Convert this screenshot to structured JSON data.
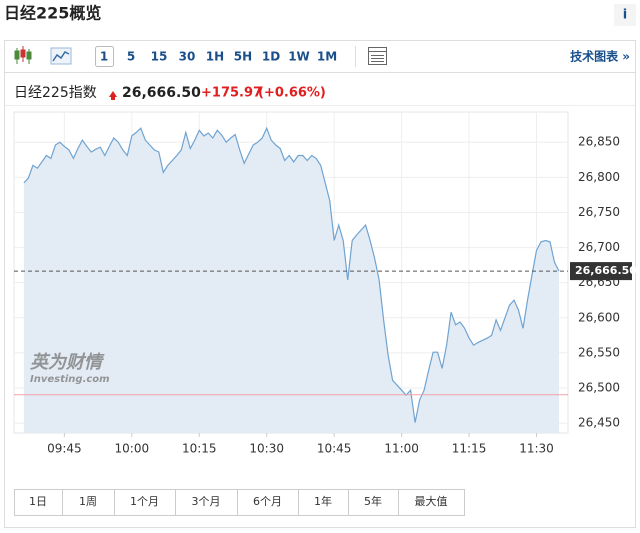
{
  "header": {
    "title": "日经225概览",
    "info": "i"
  },
  "toolbar": {
    "intervals": [
      "1",
      "5",
      "15",
      "30",
      "1H",
      "5H",
      "1D",
      "1W",
      "1M"
    ],
    "tech_chart": "技术图表 »"
  },
  "quote": {
    "name": "日经225指数",
    "price": "26,666.50",
    "change": "+175.97",
    "change_pct": "(+0.66%)"
  },
  "watermark": {
    "brand": "英为财情",
    "site": "Investing.com"
  },
  "ranges": [
    "1日",
    "1周",
    "1个月",
    "3个月",
    "6个月",
    "1年",
    "5年",
    "最大值"
  ],
  "chart_data": {
    "type": "line",
    "x": [
      576,
      577,
      578,
      579,
      580,
      581,
      582,
      583,
      584,
      585,
      586,
      587,
      588,
      589,
      590,
      591,
      592,
      593,
      594,
      595,
      596,
      597,
      598,
      599,
      600,
      601,
      602,
      603,
      604,
      605,
      606,
      607,
      608,
      609,
      610,
      611,
      612,
      613,
      614,
      615,
      616,
      617,
      618,
      619,
      620,
      621,
      622,
      623,
      624,
      625,
      626,
      627,
      628,
      629,
      630,
      631,
      632,
      633,
      634,
      635,
      636,
      637,
      638,
      639,
      640,
      641,
      642,
      643,
      644,
      645,
      646,
      647,
      648,
      649,
      650,
      651,
      652,
      653,
      654,
      655,
      656,
      657,
      658,
      659,
      660,
      661,
      662,
      663,
      664,
      665,
      666,
      667,
      668,
      669,
      670,
      671,
      672,
      673,
      674,
      675,
      676,
      677,
      678,
      679,
      680,
      681,
      682,
      683,
      684,
      685,
      686,
      687,
      688,
      689,
      690,
      691,
      692,
      693,
      694,
      695
    ],
    "series": [
      {
        "color": "#6fa3d1",
        "fill": "#e3ecf5",
        "values": [
          26792,
          26799,
          26817,
          26813,
          26822,
          26831,
          26827,
          26846,
          26850,
          26844,
          26839,
          26827,
          26841,
          26853,
          26844,
          26836,
          26840,
          26843,
          26831,
          26844,
          26856,
          26850,
          26839,
          26831,
          26859,
          26864,
          26870,
          26853,
          26846,
          26839,
          26836,
          26807,
          26817,
          26824,
          26831,
          26839,
          26864,
          26841,
          26853,
          26867,
          26859,
          26863,
          26856,
          26867,
          26860,
          26850,
          26856,
          26861,
          26839,
          26820,
          26833,
          26846,
          26850,
          26856,
          26870,
          26853,
          26846,
          26841,
          26824,
          26831,
          26822,
          26831,
          26831,
          26824,
          26831,
          26827,
          26817,
          26792,
          26767,
          26710,
          26732,
          26710,
          26654,
          26710,
          26718,
          26725,
          26732,
          26710,
          26685,
          26654,
          26597,
          26547,
          26511,
          26504,
          26497,
          26490,
          26497,
          26451,
          26483,
          26497,
          26525,
          26551,
          26551,
          26528,
          26561,
          26608,
          26590,
          26594,
          26585,
          26571,
          26561,
          26565,
          26568,
          26571,
          26575,
          26597,
          26582,
          26600,
          26618,
          26625,
          26611,
          26585,
          26625,
          26661,
          26696,
          26708,
          26710,
          26708,
          26679,
          26666.5
        ]
      }
    ],
    "last": {
      "value": 26666.5,
      "label": "26,666.50"
    },
    "prev_close": 26490.53,
    "xlim": [
      573.8,
      697
    ],
    "ylim": [
      26436,
      26893
    ],
    "xticks": [
      {
        "value": 585,
        "label": "09:45"
      },
      {
        "value": 600,
        "label": "10:00"
      },
      {
        "value": 615,
        "label": "10:15"
      },
      {
        "value": 630,
        "label": "10:30"
      },
      {
        "value": 645,
        "label": "10:45"
      },
      {
        "value": 660,
        "label": "11:00"
      },
      {
        "value": 675,
        "label": "11:15"
      },
      {
        "value": 690,
        "label": "11:30"
      }
    ],
    "yticks": [
      {
        "value": 26450,
        "label": "26,450"
      },
      {
        "value": 26500,
        "label": "26,500"
      },
      {
        "value": 26550,
        "label": "26,550"
      },
      {
        "value": 26600,
        "label": "26,600"
      },
      {
        "value": 26650,
        "label": "26,650"
      },
      {
        "value": 26700,
        "label": "26,700"
      },
      {
        "value": 26750,
        "label": "26,750"
      },
      {
        "value": 26800,
        "label": "26,800"
      },
      {
        "value": 26850,
        "label": "26,850"
      }
    ],
    "grid": true
  }
}
